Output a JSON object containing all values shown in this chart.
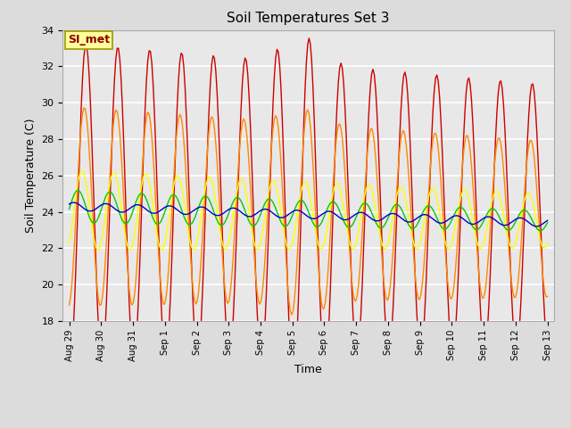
{
  "title": "Soil Temperatures Set 3",
  "xlabel": "Time",
  "ylabel": "Soil Temperature (C)",
  "ylim": [
    18,
    34
  ],
  "background_color": "#dcdcdc",
  "plot_bg_color": "#e8e8e8",
  "series_colors": {
    "TC3_2Cm": "#cc0000",
    "TC3_4Cm": "#ff8800",
    "TC3_8Cm": "#ffff00",
    "TC3_16Cm": "#00cc00",
    "TC3_32Cm": "#0000cc"
  },
  "tick_labels": [
    "Aug 29",
    "Aug 30",
    "Aug 31",
    "Sep 1",
    "Sep 2",
    "Sep 3",
    "Sep 4",
    "Sep 5",
    "Sep 6",
    "Sep 7",
    "Sep 8",
    "Sep 9",
    "Sep 10",
    "Sep 11",
    "Sep 12",
    "Sep 13"
  ],
  "annotation_text": "SI_met",
  "annotation_bg": "#ffff99",
  "annotation_border": "#999900"
}
